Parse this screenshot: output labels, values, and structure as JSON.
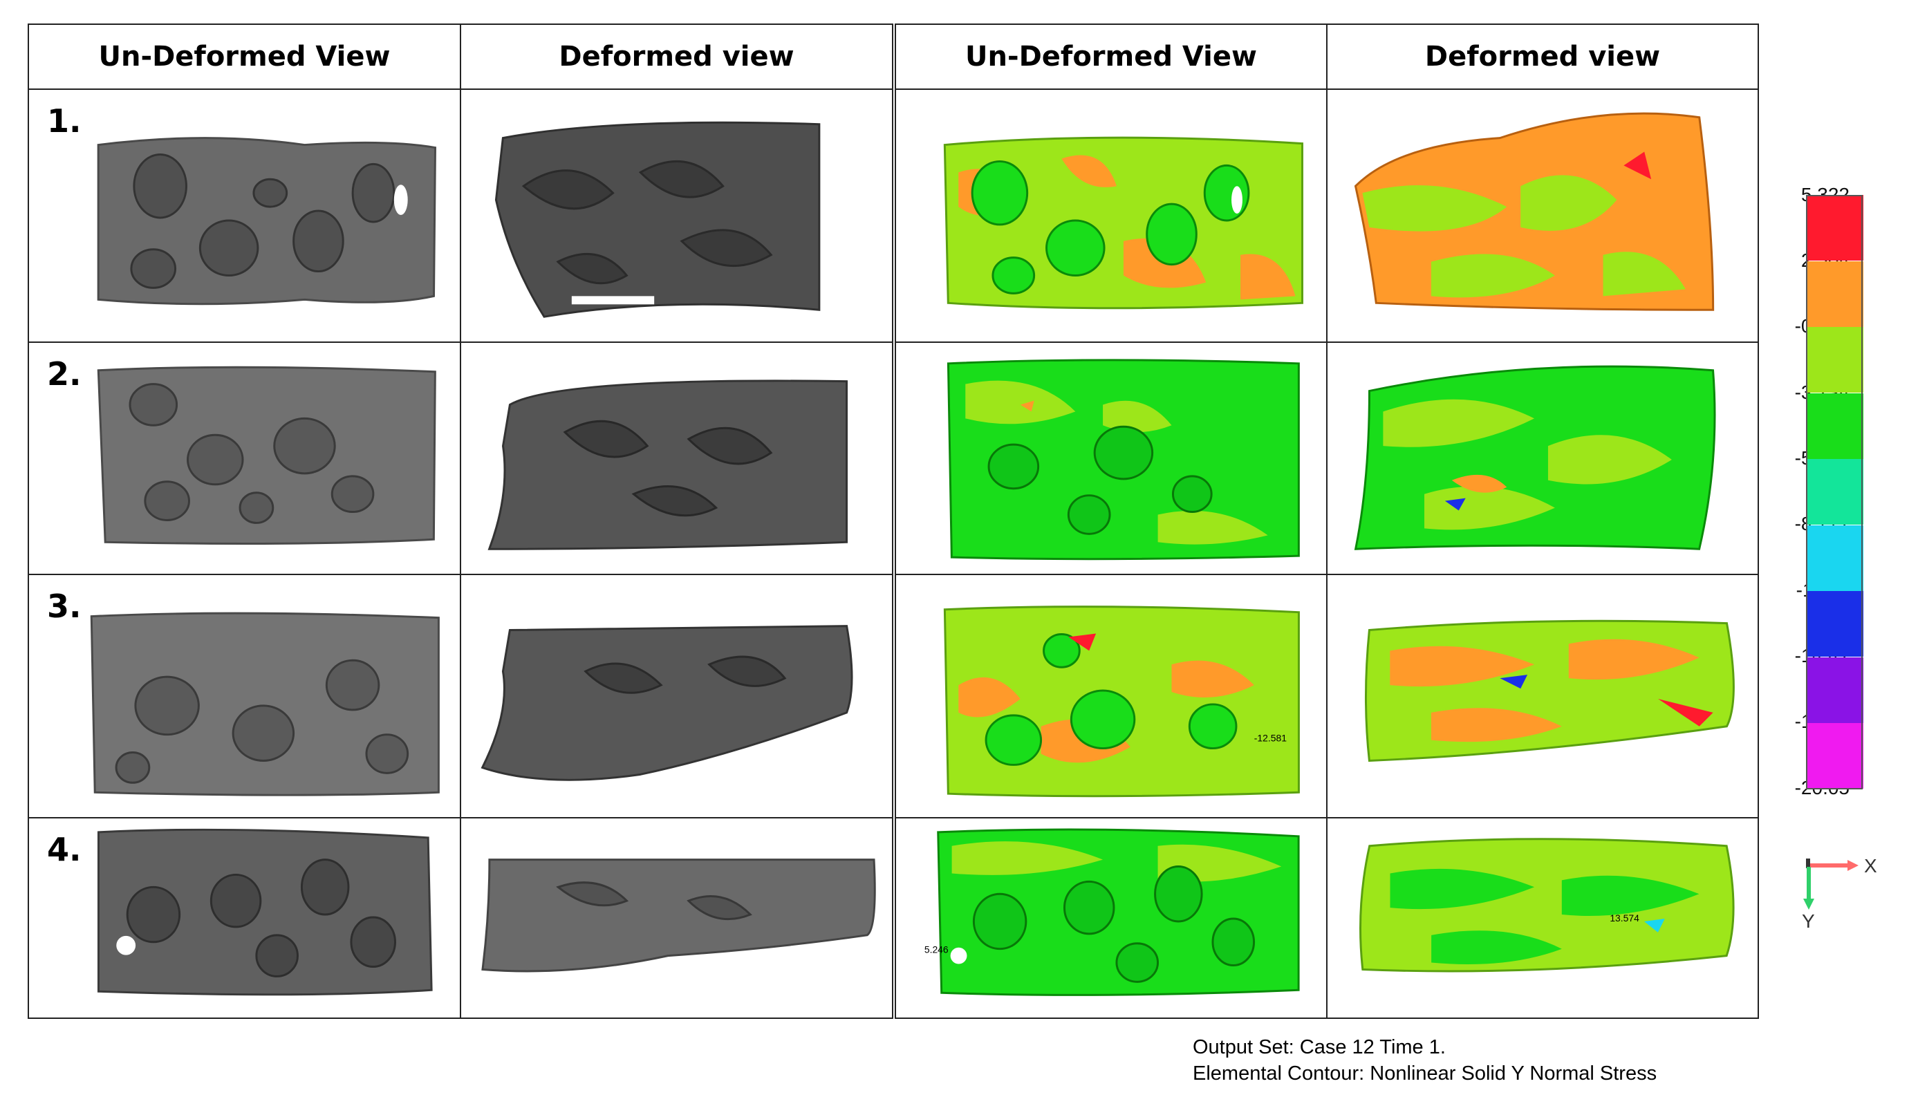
{
  "headers_left": [
    "Un-Deformed View",
    "Deformed view"
  ],
  "headers_right": [
    "Un-Deformed View",
    "Deformed view"
  ],
  "rows": [
    "1.",
    "2.",
    "3.",
    "4."
  ],
  "legend": {
    "labels": [
      "5.322",
      "2.504",
      "-0.315",
      "-3.134",
      "-5.952",
      "-8.771",
      "-11.59",
      "-14.41",
      "-17.23",
      "-20.05"
    ],
    "colors": [
      "#ff1a2e",
      "#ff9a2a",
      "#9de61a",
      "#19dd1a",
      "#13e59a",
      "#1ad6f0",
      "#1a2fe8",
      "#8a13e6",
      "#f01af0"
    ]
  },
  "axis": {
    "x_label": "X",
    "y_label": "Y"
  },
  "caption": {
    "line1": "Output Set: Case 12 Time 1.",
    "line2": "Elemental Contour: Nonlinear Solid Y Normal Stress"
  },
  "annotations": {
    "r3_right_value": "-12.581",
    "r4_undef_value": "5.246",
    "r4_def_value": "13.574"
  }
}
